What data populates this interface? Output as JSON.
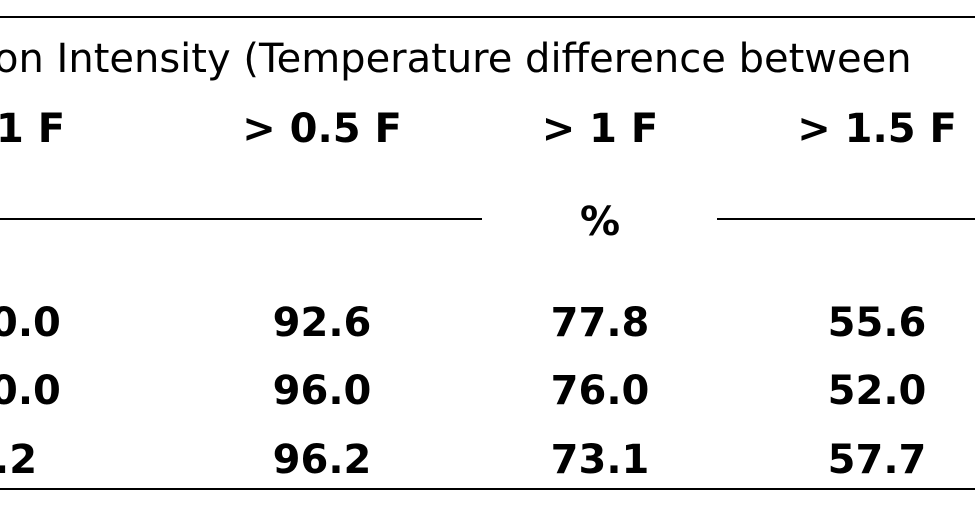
{
  "table": {
    "title": "on Intensity (Temperature difference between",
    "headers": [
      "1 F",
      "> 0.5 F",
      "> 1 F",
      "> 1.5 F"
    ],
    "unit": "%",
    "rows": [
      [
        "0.0",
        "92.6",
        "77.8",
        "55.6"
      ],
      [
        "0.0",
        "96.0",
        "76.0",
        "52.0"
      ],
      [
        ".2",
        "96.2",
        "73.1",
        "57.7"
      ]
    ]
  }
}
